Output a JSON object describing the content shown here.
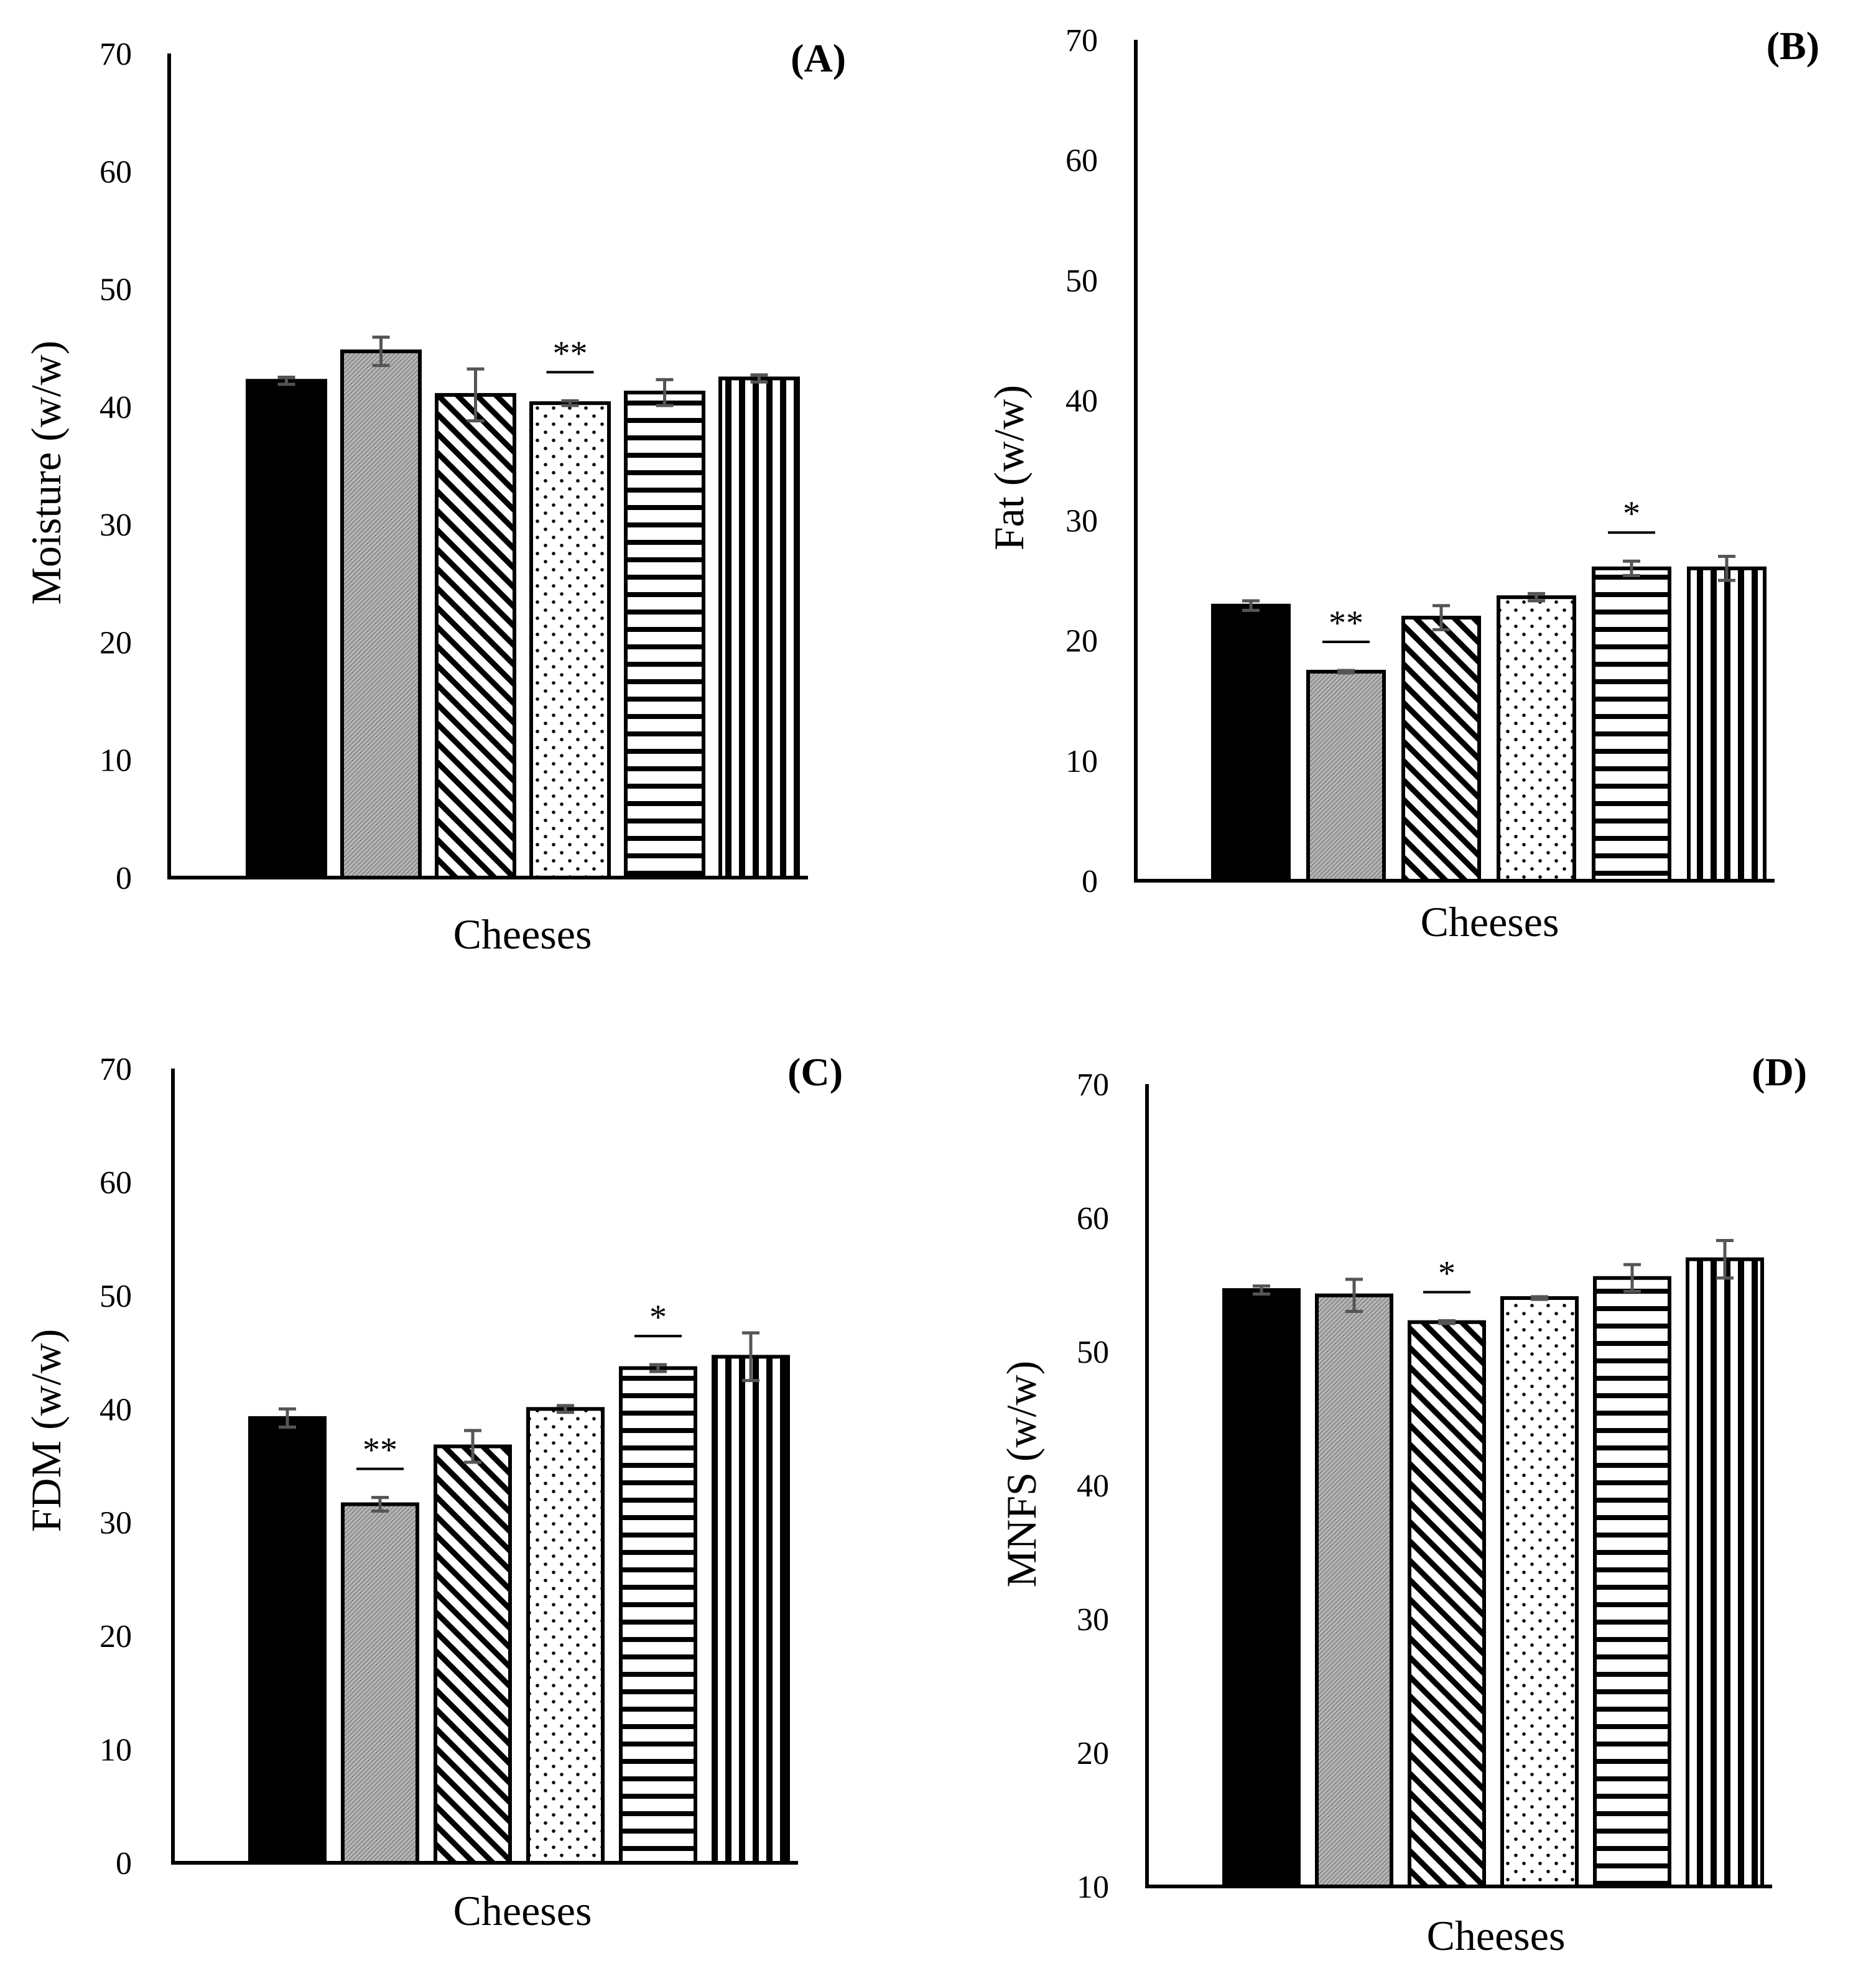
{
  "chart_data": [
    {
      "type": "bar",
      "panel_label": "(A)",
      "xlabel": "Cheeses",
      "ylabel": "Moisture (w/w)",
      "ylim": [
        0,
        70
      ],
      "yticks": [
        0,
        10,
        20,
        30,
        40,
        50,
        60,
        70
      ],
      "values": [
        42.2,
        44.7,
        41.0,
        40.3,
        41.2,
        42.4
      ],
      "errors": [
        0.3,
        1.2,
        2.2,
        0.2,
        1.1,
        0.3
      ],
      "significance": [
        {
          "bar": 3,
          "mark": "**"
        }
      ]
    },
    {
      "type": "bar",
      "panel_label": "(B)",
      "xlabel": "Cheeses",
      "ylabel": "Fat (w/w)",
      "ylim": [
        0,
        70
      ],
      "yticks": [
        0,
        10,
        20,
        30,
        40,
        50,
        60,
        70
      ],
      "values": [
        22.9,
        17.4,
        21.9,
        23.6,
        26.0,
        26.0
      ],
      "errors": [
        0.4,
        0.1,
        1.0,
        0.3,
        0.6,
        1.0
      ],
      "significance": [
        {
          "bar": 1,
          "mark": "**"
        },
        {
          "bar": 4,
          "mark": "*"
        }
      ]
    },
    {
      "type": "bar",
      "panel_label": "(C)",
      "xlabel": "Cheeses",
      "ylabel": "FDM  (w/w)",
      "ylim": [
        0,
        70
      ],
      "yticks": [
        0,
        10,
        20,
        30,
        40,
        50,
        60,
        70
      ],
      "values": [
        39.2,
        31.6,
        36.7,
        40.0,
        43.6,
        44.6
      ],
      "errors": [
        0.8,
        0.6,
        1.4,
        0.3,
        0.3,
        2.1
      ],
      "significance": [
        {
          "bar": 1,
          "mark": "**"
        },
        {
          "bar": 4,
          "mark": "*"
        }
      ]
    },
    {
      "type": "bar",
      "panel_label": "(D)",
      "xlabel": "Cheeses",
      "ylabel": "MNFS (w/w)",
      "ylim": [
        10,
        70
      ],
      "yticks": [
        10,
        20,
        30,
        40,
        50,
        60,
        70
      ],
      "values": [
        54.6,
        54.2,
        52.2,
        54.0,
        55.5,
        56.9
      ],
      "errors": [
        0.3,
        1.2,
        0.1,
        0.1,
        1.0,
        1.4
      ],
      "significance": [
        {
          "bar": 2,
          "mark": "*"
        }
      ]
    }
  ],
  "bar_patterns": [
    "solid-black",
    "gray-fine-hatch",
    "diagonal-hatch",
    "dots",
    "horizontal-lines",
    "vertical-lines"
  ],
  "colors": {
    "error_bar": "#555555",
    "gray_fill": "#a9a9a9",
    "ink": "#000000"
  }
}
